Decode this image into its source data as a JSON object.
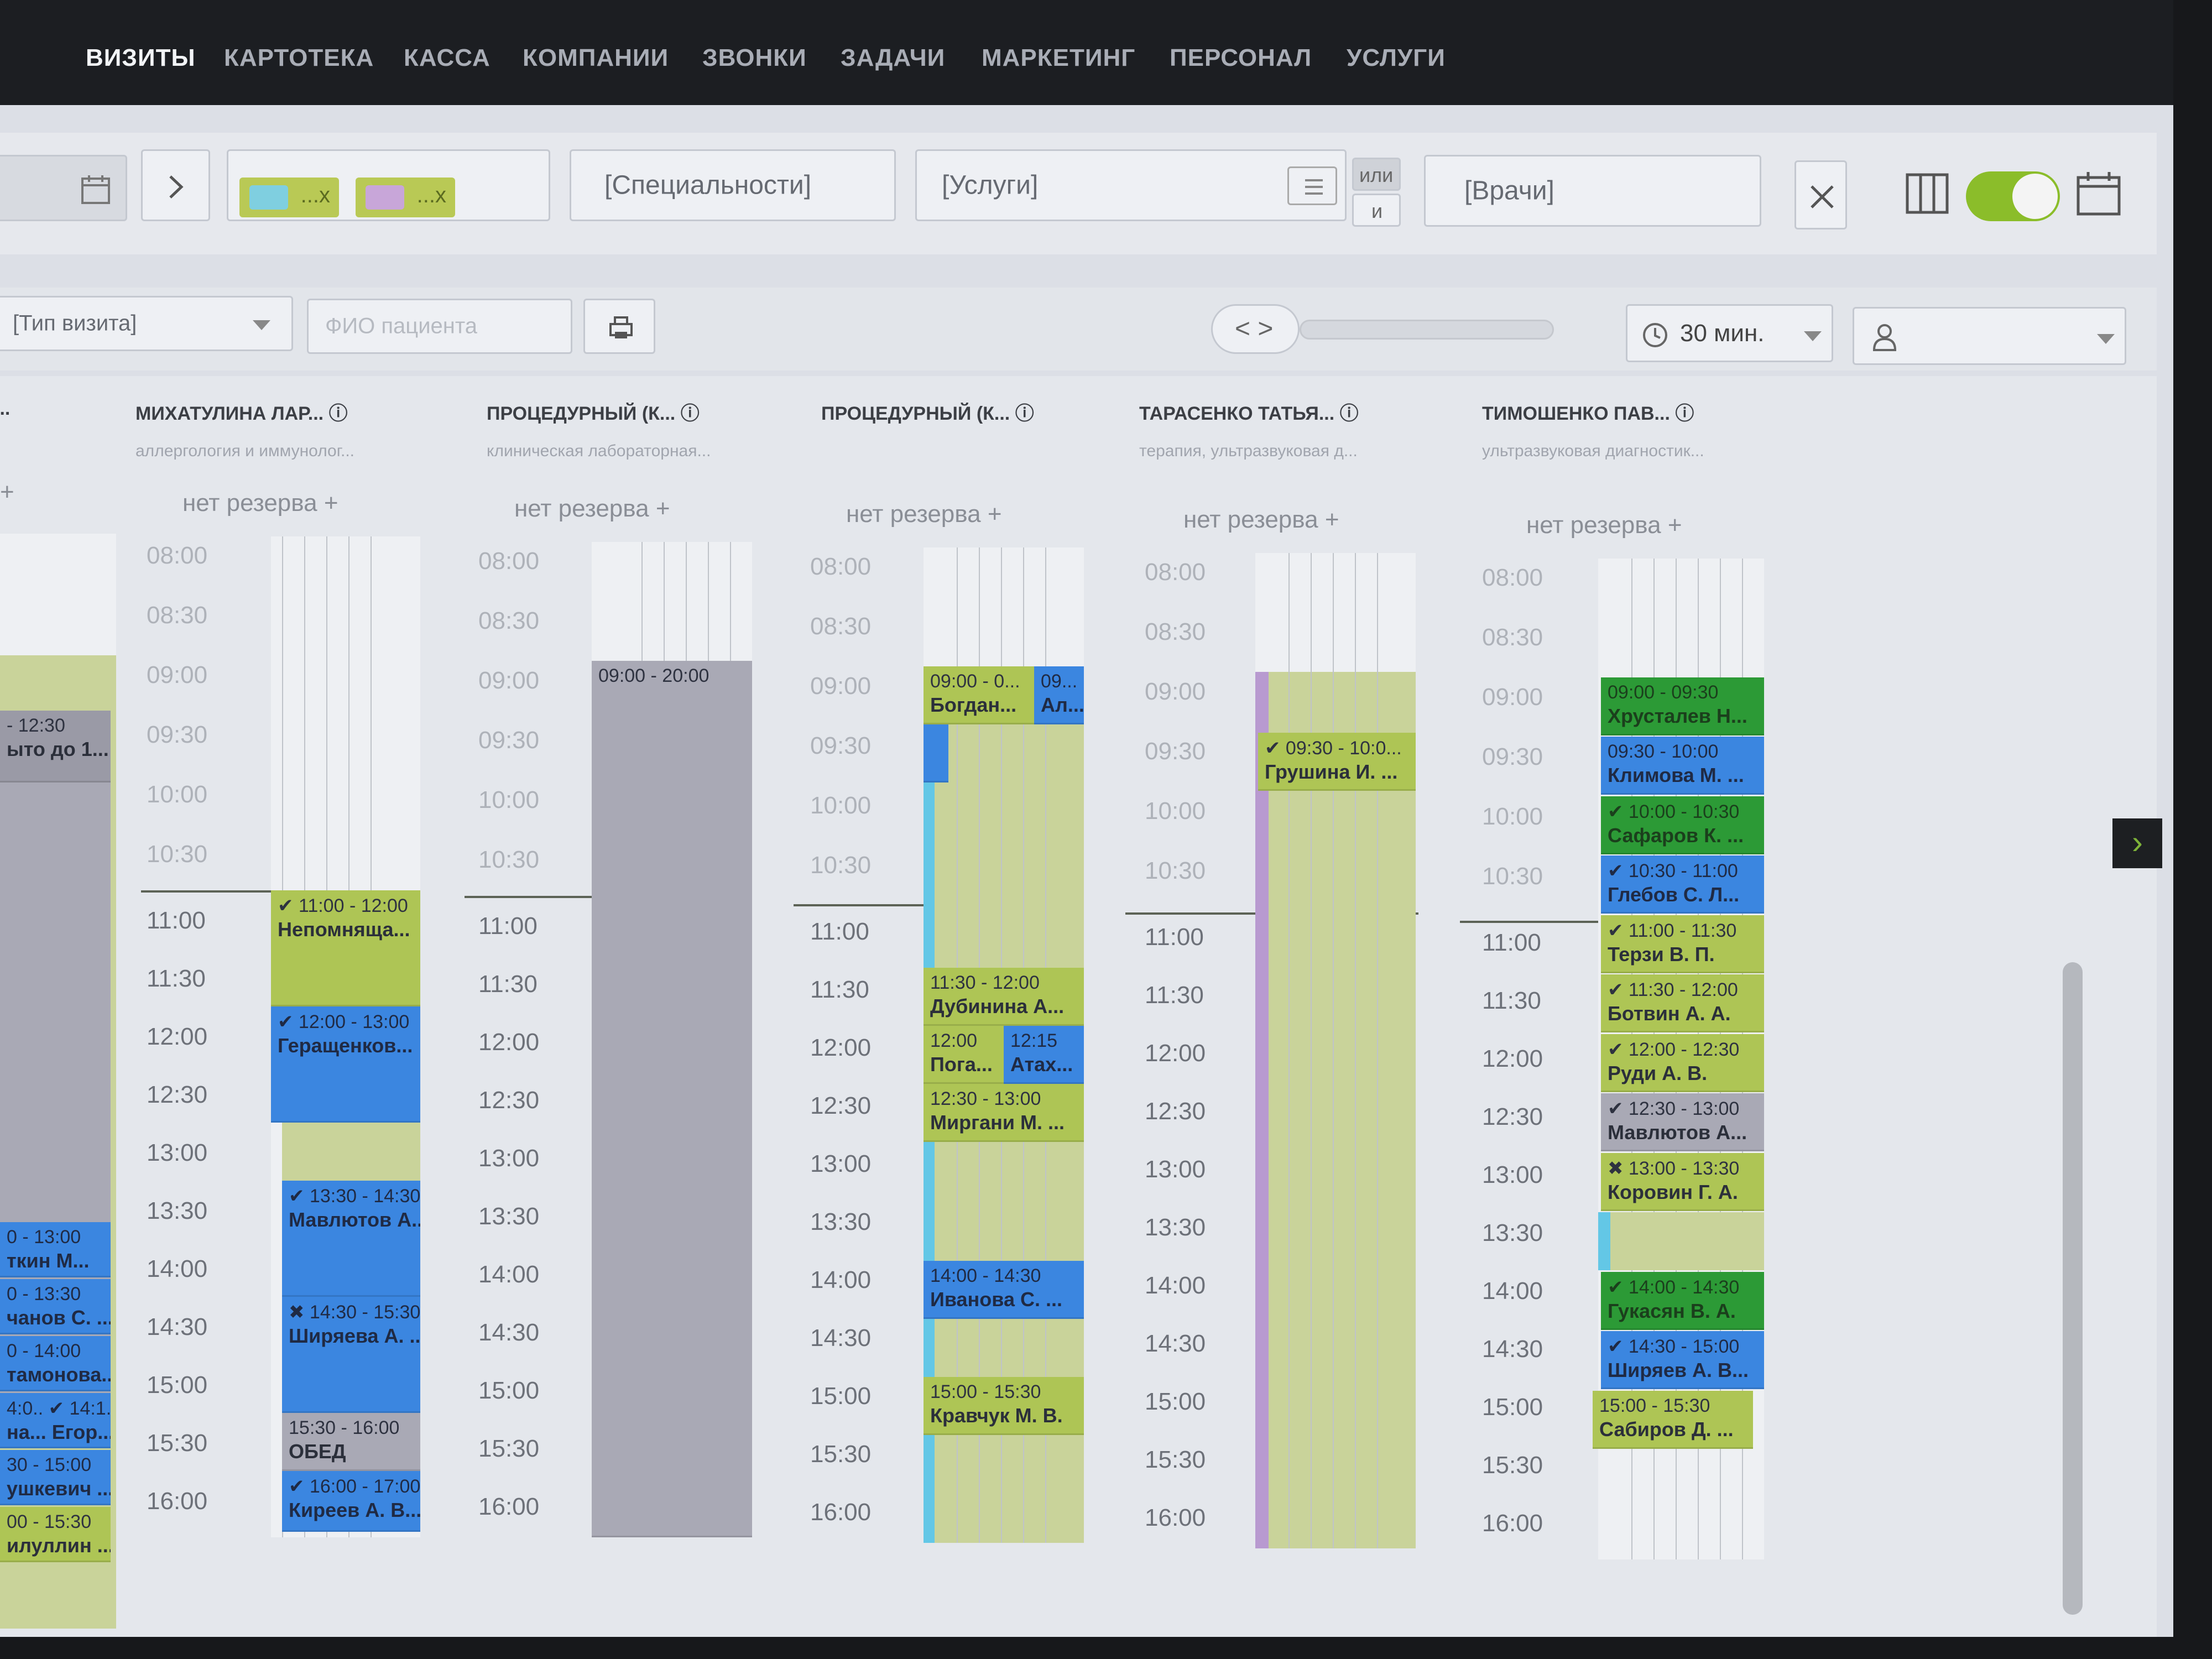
{
  "nav": {
    "items": [
      "ВИЗИТЫ",
      "КАРТОТЕКА",
      "КАССА",
      "КОМПАНИИ",
      "ЗВОНКИ",
      "ЗАДАЧИ",
      "МАРКЕТИНГ",
      "ПЕРСОНАЛ",
      "УСЛУГИ"
    ],
    "active": "ВИЗИТЫ"
  },
  "toolbar": {
    "specialties_placeholder": "[Специальности]",
    "services_placeholder": "[Услуги]",
    "logic_or": "или",
    "logic_and": "и",
    "doctors_placeholder": "[Врачи]",
    "visit_type_placeholder": "[Тип визита]",
    "patient_name_placeholder": "ФИО пациента",
    "interval_value": "30 мин.",
    "chip_suffix": "...x",
    "colors": {
      "chip1": "#7fcfe0",
      "chip2": "#c8a6d9",
      "chip_bg": "#b9c955",
      "toggle_on": "#8bbd2a",
      "accent_nav": "#f2f4f7"
    },
    "icons": [
      "calendar-icon",
      "chevron-right-icon",
      "list-icon",
      "close-icon",
      "columns-icon",
      "toggle-icon",
      "calendar-icon",
      "printer-icon",
      "code-arrows-icon",
      "clock-icon",
      "chevron-down-icon",
      "user-icon"
    ]
  },
  "calendar": {
    "reserve_label": "нет резерва +",
    "times": [
      "08:00",
      "08:30",
      "09:00",
      "09:30",
      "10:00",
      "10:30",
      "11:00",
      "11:30",
      "12:00",
      "12:30",
      "13:00",
      "13:30",
      "14:00",
      "14:30",
      "15:00",
      "15:30",
      "16:00"
    ],
    "partial_column": {
      "name": "...",
      "appointments": [
        {
          "time": "- 12:30",
          "name": "ыто до 1..."
        },
        {
          "time": "0 - 13:00",
          "name": "ткин М..."
        },
        {
          "time": "0 - 13:30",
          "name": "чанов С. ..."
        },
        {
          "time": "0 - 14:00",
          "name": "тамонова..."
        },
        {
          "time": "4:0.. ✔ 14:1..",
          "name": "на... Егор..."
        },
        {
          "time": "30 - 15:00",
          "name": "ушкевич ..."
        },
        {
          "time": "00 - 15:30",
          "name": "илуллин ..."
        }
      ]
    },
    "columns": [
      {
        "name": "МИХАТУЛИНА ЛАР...",
        "spec": "аллергология и иммунолог...",
        "appointments": [
          {
            "time": "✔ 11:00 - 12:00",
            "name": "Непомняща..."
          },
          {
            "time": "✔ 12:00 - 13:00",
            "name": "Геращенков..."
          },
          {
            "time": "✔ 13:30 - 14:30",
            "name": "Мавлютов А..."
          },
          {
            "time": "✖ 14:30 - 15:30",
            "name": "Ширяева А. ..."
          },
          {
            "time": "15:30 - 16:00",
            "name": "ОБЕД"
          },
          {
            "time": "✔ 16:00 - 17:00",
            "name": "Киреев А. В..."
          }
        ]
      },
      {
        "name": "ПРОЦЕДУРНЫЙ (К...",
        "spec": "клиническая лабораторная...",
        "appointments": [
          {
            "time": "09:00 - 20:00",
            "name": ""
          }
        ]
      },
      {
        "name": "ПРОЦЕДУРНЫЙ (К...",
        "spec": "",
        "appointments": [
          {
            "time": "09:00 - 0...",
            "name": "Богдан..."
          },
          {
            "time": "09...",
            "name": "Ал..."
          },
          {
            "time": "11:30 - 12:00",
            "name": "Дубинина А..."
          },
          {
            "time": "12:00",
            "name": "Пога..."
          },
          {
            "time": "12:15",
            "name": "Атах..."
          },
          {
            "time": "12:30 - 13:00",
            "name": "Миргани М. ..."
          },
          {
            "time": "14:00 - 14:30",
            "name": "Иванова С. ..."
          },
          {
            "time": "15:00 - 15:30",
            "name": "Кравчук М. В."
          }
        ]
      },
      {
        "name": "ТАРАСЕНКО ТАТЬЯ...",
        "spec": "терапия, ультразвуковая д...",
        "appointments": [
          {
            "time": "✔ 09:30 - 10:0...",
            "name": "Грушина И. ..."
          }
        ]
      },
      {
        "name": "ТИМОШЕНКО ПАВ...",
        "spec": "ультразвуковая диагностик...",
        "appointments": [
          {
            "time": "09:00 - 09:30",
            "name": "Хрусталев Н..."
          },
          {
            "time": "09:30 - 10:00",
            "name": "Климова М. ..."
          },
          {
            "time": "✔ 10:00 - 10:30",
            "name": "Сафаров К. ..."
          },
          {
            "time": "✔ 10:30 - 11:00",
            "name": "Глебов С. Л..."
          },
          {
            "time": "✔ 11:00 - 11:30",
            "name": "Терзи В. П."
          },
          {
            "time": "✔ 11:30 - 12:00",
            "name": "Ботвин А. А."
          },
          {
            "time": "✔ 12:00 - 12:30",
            "name": "Руди А. В."
          },
          {
            "time": "✔ 12:30 - 13:00",
            "name": "Мавлютов А..."
          },
          {
            "time": "✖ 13:00 - 13:30",
            "name": "Коровин Г. А."
          },
          {
            "time": "✔ 14:00 - 14:30",
            "name": "Гукасян В. А."
          },
          {
            "time": "✔ 14:30 - 15:00",
            "name": "Ширяев А. В..."
          },
          {
            "time": "15:00 - 15:30",
            "name": "Сабиров Д. ..."
          }
        ]
      }
    ]
  }
}
